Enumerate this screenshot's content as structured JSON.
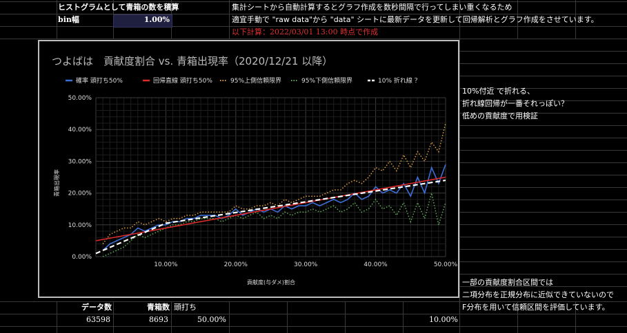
{
  "sheet": {
    "a1": "ヒストグラムとして青箱の数を積算",
    "a2": "bin幅",
    "b2": "1.00%",
    "c1": "集計シートから自動計算するとグラフ作成を数秒間隔で行ってしまい重くなるため",
    "c2": "適宜手動で \"raw data\"から \"data\" シートに最新データを更新して回帰解析とグラフ作成をさせています。",
    "c3": "以下計算：2022/03/01 13:00 時点で作成",
    "note1": "10%付近 で折れる、",
    "note2": "折れ線回帰が一番それっぽい？",
    "note3": "低めの貢献度で用検証",
    "note4": "一部の貢献度割合区間では",
    "note5": "二項分布を正規分布に近似できていないので",
    "note6": "F分布を用いて信頼区間を評価しています。",
    "h_data": "データ数",
    "h_blue": "青箱数",
    "h_head": "頭打ち",
    "v_data": "63598",
    "v_blue": "8693",
    "v_head": "50.00%",
    "v_break": "10.00%"
  },
  "chart_data": {
    "type": "line",
    "title": "つよばは　貢献度割合 vs. 青箱出現率（2020/12/21 以降）",
    "xlabel": "貢献度(与ダメ)割合",
    "ylabel": "青箱出現率",
    "xlim": [
      0,
      0.5
    ],
    "ylim": [
      0,
      0.5
    ],
    "xticks": [
      "10.00%",
      "20.00%",
      "30.00%",
      "40.00%",
      "50.00%"
    ],
    "yticks": [
      "0.00%",
      "10.00%",
      "20.00%",
      "30.00%",
      "40.00%",
      "50.00%"
    ],
    "legend_position": "top",
    "grid": true,
    "series": [
      {
        "name": "確率 頭打ち50%",
        "color": "#3b6fd8",
        "style": "solid",
        "x": [
          0.01,
          0.02,
          0.03,
          0.04,
          0.05,
          0.06,
          0.07,
          0.08,
          0.09,
          0.1,
          0.11,
          0.12,
          0.13,
          0.14,
          0.15,
          0.16,
          0.17,
          0.18,
          0.19,
          0.2,
          0.21,
          0.22,
          0.23,
          0.24,
          0.25,
          0.26,
          0.27,
          0.28,
          0.29,
          0.3,
          0.31,
          0.32,
          0.33,
          0.34,
          0.35,
          0.36,
          0.37,
          0.38,
          0.39,
          0.4,
          0.41,
          0.42,
          0.43,
          0.44,
          0.45,
          0.46,
          0.47,
          0.48,
          0.49,
          0.5
        ],
        "y": [
          0.02,
          0.04,
          0.05,
          0.06,
          0.07,
          0.09,
          0.08,
          0.09,
          0.1,
          0.1,
          0.11,
          0.11,
          0.12,
          0.12,
          0.13,
          0.13,
          0.13,
          0.12,
          0.13,
          0.15,
          0.13,
          0.14,
          0.15,
          0.14,
          0.15,
          0.14,
          0.16,
          0.15,
          0.16,
          0.16,
          0.17,
          0.16,
          0.17,
          0.18,
          0.17,
          0.18,
          0.2,
          0.18,
          0.19,
          0.22,
          0.2,
          0.21,
          0.2,
          0.23,
          0.19,
          0.25,
          0.2,
          0.28,
          0.23,
          0.29
        ]
      },
      {
        "name": "回帰直線 頭打ち50%",
        "color": "#e02a2a",
        "style": "solid",
        "x": [
          0,
          0.5
        ],
        "y": [
          0.05,
          0.25
        ]
      },
      {
        "name": "95%上側信頼限界",
        "color": "#e0a040",
        "style": "dotted",
        "x": [
          0.01,
          0.02,
          0.03,
          0.04,
          0.05,
          0.06,
          0.07,
          0.08,
          0.09,
          0.1,
          0.11,
          0.12,
          0.13,
          0.14,
          0.15,
          0.16,
          0.17,
          0.18,
          0.19,
          0.2,
          0.21,
          0.22,
          0.23,
          0.24,
          0.25,
          0.26,
          0.27,
          0.28,
          0.29,
          0.3,
          0.31,
          0.32,
          0.33,
          0.34,
          0.35,
          0.36,
          0.37,
          0.38,
          0.39,
          0.4,
          0.41,
          0.42,
          0.43,
          0.44,
          0.45,
          0.46,
          0.47,
          0.48,
          0.49,
          0.5
        ],
        "y": [
          0.04,
          0.07,
          0.08,
          0.09,
          0.09,
          0.11,
          0.1,
          0.11,
          0.12,
          0.11,
          0.12,
          0.12,
          0.13,
          0.13,
          0.14,
          0.14,
          0.14,
          0.14,
          0.14,
          0.16,
          0.15,
          0.15,
          0.16,
          0.16,
          0.17,
          0.16,
          0.18,
          0.17,
          0.18,
          0.19,
          0.19,
          0.19,
          0.2,
          0.21,
          0.21,
          0.23,
          0.24,
          0.23,
          0.25,
          0.28,
          0.27,
          0.3,
          0.27,
          0.32,
          0.28,
          0.33,
          0.3,
          0.36,
          0.33,
          0.42
        ]
      },
      {
        "name": "95%下側信頼限界",
        "color": "#5fae5a",
        "style": "dotted",
        "x": [
          0.01,
          0.02,
          0.03,
          0.04,
          0.05,
          0.06,
          0.07,
          0.08,
          0.09,
          0.1,
          0.11,
          0.12,
          0.13,
          0.14,
          0.15,
          0.16,
          0.17,
          0.18,
          0.19,
          0.2,
          0.21,
          0.22,
          0.23,
          0.24,
          0.25,
          0.26,
          0.27,
          0.28,
          0.29,
          0.3,
          0.31,
          0.32,
          0.33,
          0.34,
          0.35,
          0.36,
          0.37,
          0.38,
          0.39,
          0.4,
          0.41,
          0.42,
          0.43,
          0.44,
          0.45,
          0.46,
          0.47,
          0.48,
          0.49,
          0.5
        ],
        "y": [
          0.0,
          0.01,
          0.02,
          0.03,
          0.05,
          0.07,
          0.06,
          0.07,
          0.08,
          0.09,
          0.1,
          0.1,
          0.11,
          0.11,
          0.12,
          0.12,
          0.12,
          0.11,
          0.12,
          0.13,
          0.12,
          0.13,
          0.14,
          0.12,
          0.13,
          0.12,
          0.14,
          0.13,
          0.14,
          0.14,
          0.15,
          0.14,
          0.15,
          0.16,
          0.14,
          0.15,
          0.17,
          0.14,
          0.15,
          0.18,
          0.15,
          0.16,
          0.13,
          0.17,
          0.11,
          0.17,
          0.12,
          0.2,
          0.1,
          0.17
        ]
      },
      {
        "name": "10% 折れ線 ？",
        "color": "#ffffff",
        "style": "dashed",
        "x": [
          0,
          0.1,
          0.5
        ],
        "y": [
          0.01,
          0.105,
          0.24
        ]
      }
    ]
  },
  "colors": {
    "background": "#000000",
    "accent_red": "#e03030",
    "selection": "#1f1f3f"
  }
}
